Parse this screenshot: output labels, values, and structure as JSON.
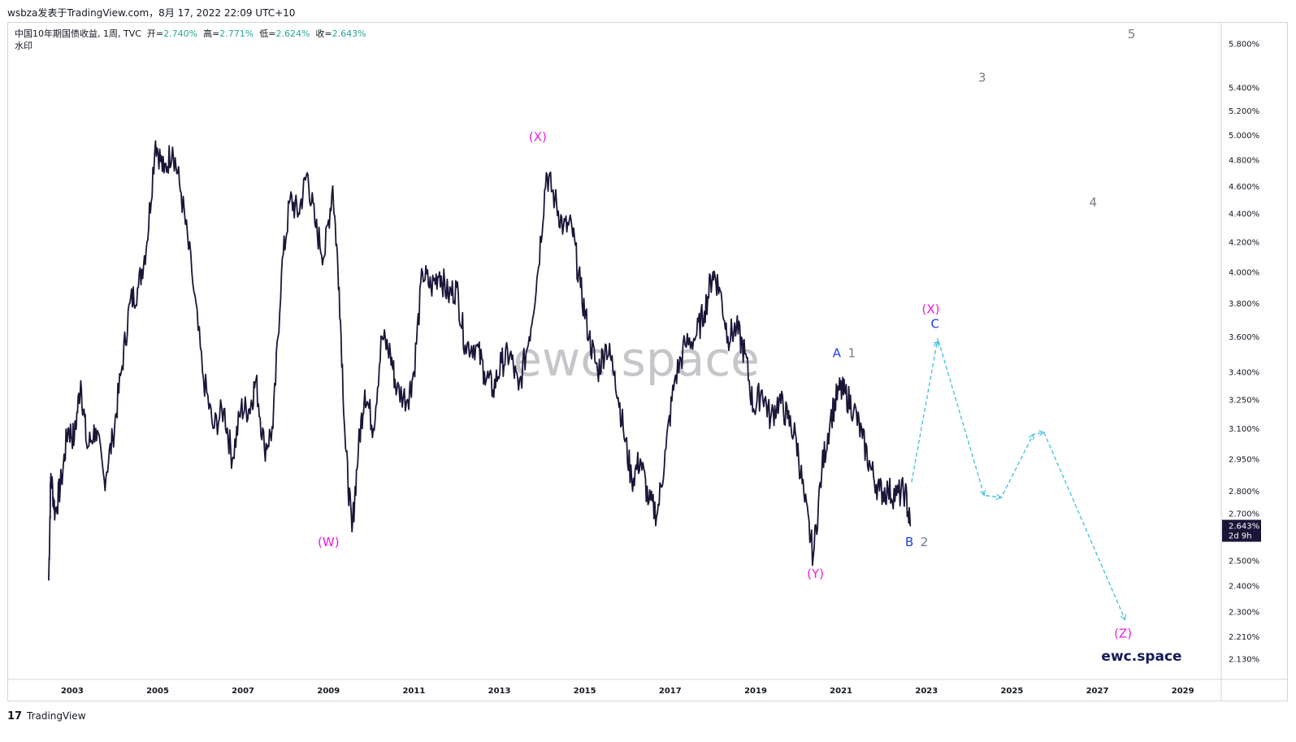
{
  "header": {
    "publisher_line": "wsbza发表于TradingView.com，8月 17, 2022 22:09 UTC+10"
  },
  "legend": {
    "symbol": "中国10年期国债收益, 1周, TVC",
    "open_label": "开=",
    "open_value": "2.740%",
    "high_label": "高=",
    "high_value": "2.771%",
    "low_label": "低=",
    "low_value": "2.624%",
    "close_label": "收=",
    "close_value": "2.643%",
    "watermark_label": "水印"
  },
  "footer": {
    "logo_text": "𝟭𝟳",
    "brand": "TradingView"
  },
  "colors": {
    "price_line": "#1b1538",
    "projection": "#4dc3e0",
    "magenta_label": "#e91ee0",
    "blue_label": "#1c3fe0",
    "gray_label": "#787b86",
    "watermark": "#b2b2b8",
    "brand_dark": "#131a5a"
  },
  "chart_data": {
    "type": "line",
    "title": "中国10年期国债收益, 1周, TVC",
    "xlabel": "",
    "ylabel": "",
    "y_scale": "log",
    "xlim": [
      2001.5,
      2029.9
    ],
    "ylim": [
      2.06,
      6.0
    ],
    "grid": false,
    "x_ticks": [
      "2003",
      "2005",
      "2007",
      "2009",
      "2011",
      "2013",
      "2015",
      "2017",
      "2019",
      "2021",
      "2023",
      "2025",
      "2027",
      "2029"
    ],
    "y_ticks": [
      "5.800%",
      "5.400%",
      "5.200%",
      "5.000%",
      "4.800%",
      "4.600%",
      "4.400%",
      "4.200%",
      "4.000%",
      "3.800%",
      "3.600%",
      "3.400%",
      "3.250%",
      "3.100%",
      "2.950%",
      "2.800%",
      "2.700%",
      "2.500%",
      "2.400%",
      "2.300%",
      "2.210%",
      "2.130%"
    ],
    "y_tick_values": [
      5.8,
      5.4,
      5.2,
      5.0,
      4.8,
      4.6,
      4.4,
      4.2,
      4.0,
      3.8,
      3.6,
      3.4,
      3.25,
      3.1,
      2.95,
      2.8,
      2.7,
      2.5,
      2.4,
      2.3,
      2.21,
      2.13
    ],
    "last_price_label": "2.643%",
    "last_price_value": 2.643,
    "countdown_label": "2d 9h",
    "series": [
      {
        "points": [
          [
            2002.45,
            2.42
          ],
          [
            2002.5,
            2.88
          ],
          [
            2002.6,
            2.7
          ],
          [
            2002.75,
            2.85
          ],
          [
            2002.9,
            3.1
          ],
          [
            2003.05,
            3.05
          ],
          [
            2003.2,
            3.35
          ],
          [
            2003.35,
            3.0
          ],
          [
            2003.55,
            3.1
          ],
          [
            2003.75,
            2.85
          ],
          [
            2003.95,
            3.05
          ],
          [
            2004.15,
            3.4
          ],
          [
            2004.35,
            3.8
          ],
          [
            2004.55,
            3.9
          ],
          [
            2004.75,
            4.2
          ],
          [
            2004.95,
            4.95
          ],
          [
            2005.15,
            4.7
          ],
          [
            2005.35,
            4.9
          ],
          [
            2005.55,
            4.55
          ],
          [
            2005.8,
            4.0
          ],
          [
            2006.05,
            3.4
          ],
          [
            2006.3,
            3.1
          ],
          [
            2006.55,
            3.2
          ],
          [
            2006.75,
            2.95
          ],
          [
            2006.95,
            3.2
          ],
          [
            2007.15,
            3.2
          ],
          [
            2007.3,
            3.35
          ],
          [
            2007.5,
            3.0
          ],
          [
            2007.7,
            3.1
          ],
          [
            2007.9,
            4.0
          ],
          [
            2008.1,
            4.5
          ],
          [
            2008.3,
            4.4
          ],
          [
            2008.5,
            4.7
          ],
          [
            2008.7,
            4.3
          ],
          [
            2008.9,
            4.1
          ],
          [
            2009.1,
            4.6
          ],
          [
            2009.25,
            3.9
          ],
          [
            2009.4,
            3.0
          ],
          [
            2009.55,
            2.62
          ],
          [
            2009.7,
            3.0
          ],
          [
            2009.85,
            3.3
          ],
          [
            2010.05,
            3.1
          ],
          [
            2010.25,
            3.6
          ],
          [
            2010.45,
            3.5
          ],
          [
            2010.6,
            3.3
          ],
          [
            2010.85,
            3.25
          ],
          [
            2011.0,
            3.4
          ],
          [
            2011.2,
            4.0
          ],
          [
            2011.4,
            3.9
          ],
          [
            2011.6,
            4.0
          ],
          [
            2011.8,
            3.85
          ],
          [
            2012.0,
            3.9
          ],
          [
            2012.2,
            3.55
          ],
          [
            2012.45,
            3.55
          ],
          [
            2012.65,
            3.4
          ],
          [
            2012.85,
            3.3
          ],
          [
            2013.05,
            3.45
          ],
          [
            2013.25,
            3.5
          ],
          [
            2013.45,
            3.3
          ],
          [
            2013.7,
            3.6
          ],
          [
            2013.9,
            4.0
          ],
          [
            2014.1,
            4.7
          ],
          [
            2014.3,
            4.5
          ],
          [
            2014.5,
            4.3
          ],
          [
            2014.7,
            4.3
          ],
          [
            2014.9,
            3.9
          ],
          [
            2015.1,
            3.6
          ],
          [
            2015.3,
            3.4
          ],
          [
            2015.5,
            3.55
          ],
          [
            2015.7,
            3.4
          ],
          [
            2015.9,
            3.1
          ],
          [
            2016.1,
            2.85
          ],
          [
            2016.3,
            2.95
          ],
          [
            2016.5,
            2.75
          ],
          [
            2016.7,
            2.7
          ],
          [
            2016.9,
            3.0
          ],
          [
            2017.1,
            3.35
          ],
          [
            2017.35,
            3.55
          ],
          [
            2017.6,
            3.6
          ],
          [
            2017.8,
            3.75
          ],
          [
            2018.0,
            4.0
          ],
          [
            2018.15,
            3.9
          ],
          [
            2018.35,
            3.6
          ],
          [
            2018.55,
            3.65
          ],
          [
            2018.75,
            3.5
          ],
          [
            2018.95,
            3.2
          ],
          [
            2019.15,
            3.3
          ],
          [
            2019.35,
            3.15
          ],
          [
            2019.55,
            3.25
          ],
          [
            2019.75,
            3.15
          ],
          [
            2019.95,
            3.05
          ],
          [
            2020.15,
            2.75
          ],
          [
            2020.35,
            2.52
          ],
          [
            2020.55,
            2.9
          ],
          [
            2020.75,
            3.15
          ],
          [
            2020.95,
            3.3
          ],
          [
            2021.1,
            3.28
          ],
          [
            2021.3,
            3.2
          ],
          [
            2021.5,
            3.05
          ],
          [
            2021.7,
            2.9
          ],
          [
            2021.9,
            2.8
          ],
          [
            2022.1,
            2.8
          ],
          [
            2022.3,
            2.78
          ],
          [
            2022.5,
            2.8
          ],
          [
            2022.62,
            2.643
          ]
        ]
      }
    ],
    "projection": [
      [
        2022.65,
        2.84
      ],
      [
        2023.25,
        3.57
      ],
      [
        2023.3,
        3.56
      ],
      [
        2024.35,
        2.78
      ],
      [
        2024.75,
        2.77
      ],
      [
        2025.5,
        3.07
      ],
      [
        2025.75,
        3.08
      ],
      [
        2027.65,
        2.27
      ]
    ],
    "annotations": [
      {
        "text": "(W)",
        "x": 2009.0,
        "y": 2.56,
        "color": "magenta"
      },
      {
        "text": "(X)",
        "x": 2013.9,
        "y": 4.95,
        "color": "magenta"
      },
      {
        "text": "(Y)",
        "x": 2020.4,
        "y": 2.43,
        "color": "magenta"
      },
      {
        "text": "(X)",
        "x": 2023.1,
        "y": 3.74,
        "color": "magenta"
      },
      {
        "text": "(Z)",
        "x": 2027.6,
        "y": 2.205,
        "color": "magenta"
      },
      {
        "text": "A",
        "x": 2020.9,
        "y": 3.48,
        "color": "blue"
      },
      {
        "text": "B",
        "x": 2022.6,
        "y": 2.56,
        "color": "blue"
      },
      {
        "text": "C",
        "x": 2023.2,
        "y": 3.65,
        "color": "blue"
      },
      {
        "text": "1",
        "x": 2021.25,
        "y": 3.48,
        "color": "gray"
      },
      {
        "text": "2",
        "x": 2022.95,
        "y": 2.56,
        "color": "gray"
      },
      {
        "text": "3",
        "x": 2024.3,
        "y": 5.45,
        "color": "gray"
      },
      {
        "text": "4",
        "x": 2026.9,
        "y": 4.45,
        "color": "gray"
      },
      {
        "text": "5",
        "x": 2027.8,
        "y": 5.85,
        "color": "gray"
      }
    ],
    "watermark_text": "ewc.space",
    "brand_text": "ewc.space"
  }
}
